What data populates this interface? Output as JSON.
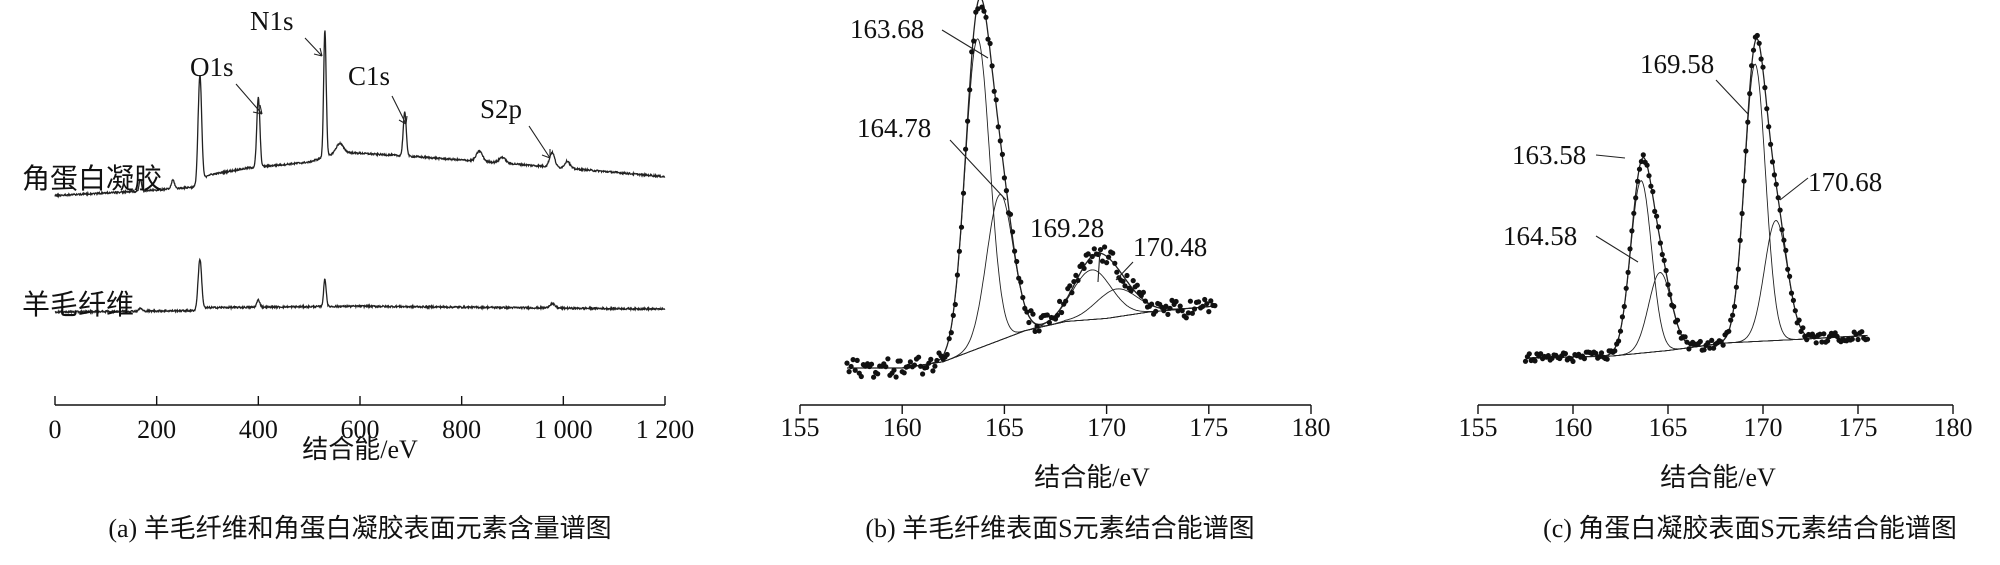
{
  "chart_data": [
    {
      "type": "line",
      "caption": "(a) 羊毛纤维和角蛋白凝胶表面元素含量谱图",
      "xlabel": "结合能/eV",
      "xlim": [
        0,
        1200
      ],
      "xticks": [
        0,
        200,
        400,
        600,
        800,
        1000,
        1200
      ],
      "xtick_labels": [
        "0",
        "200",
        "400",
        "600",
        "800",
        "1 000",
        "1 200"
      ],
      "series": [
        {
          "name": "角蛋白凝胶",
          "baseline": [
            [
              0,
              10
            ],
            [
              170,
              13
            ],
            [
              280,
              16
            ],
            [
              300,
              24
            ],
            [
              380,
              29
            ],
            [
              500,
              33
            ],
            [
              560,
              40
            ],
            [
              700,
              37
            ],
            [
              860,
              33
            ],
            [
              1000,
              29
            ],
            [
              1200,
              23
            ]
          ],
          "peaks": [
            {
              "x": 168,
              "h": 8,
              "w": 2.5
            },
            {
              "x": 232,
              "h": 6,
              "w": 3
            },
            {
              "x": 285,
              "h": 75,
              "w": 3.5
            },
            {
              "x": 400,
              "h": 48,
              "w": 3
            },
            {
              "x": 531,
              "h": 88,
              "w": 2.5
            },
            {
              "x": 560,
              "h": 6,
              "w": 7
            },
            {
              "x": 688,
              "h": 30,
              "w": 3
            },
            {
              "x": 835,
              "h": 7,
              "w": 6
            },
            {
              "x": 880,
              "h": 4,
              "w": 6
            },
            {
              "x": 978,
              "h": 10,
              "w": 5
            },
            {
              "x": 1008,
              "h": 5,
              "w": 5
            }
          ]
        },
        {
          "name": "羊毛纤维",
          "baseline": [
            [
              0,
              0
            ],
            [
              280,
              1
            ],
            [
              300,
              3
            ],
            [
              600,
              4
            ],
            [
              1200,
              2
            ]
          ],
          "peaks": [
            {
              "x": 168,
              "h": 2,
              "w": 3
            },
            {
              "x": 285,
              "h": 35,
              "w": 3.5
            },
            {
              "x": 400,
              "h": 5,
              "w": 3
            },
            {
              "x": 531,
              "h": 19,
              "w": 2.5
            },
            {
              "x": 978,
              "h": 3,
              "w": 5
            }
          ]
        }
      ],
      "annotations": [
        {
          "text": "O1s",
          "x": 400
        },
        {
          "text": "N1s",
          "x": 531
        },
        {
          "text": "C1s",
          "x": 688
        },
        {
          "text": "S2p",
          "x": 978
        }
      ]
    },
    {
      "type": "scatter",
      "caption": "(b) 羊毛纤维表面S元素结合能谱图",
      "xlabel": "结合能/eV",
      "xlim": [
        155,
        180
      ],
      "xticks": [
        155,
        160,
        165,
        170,
        175,
        180
      ],
      "data_range": [
        157.3,
        175.3
      ],
      "background": [
        [
          157.3,
          0
        ],
        [
          160,
          0
        ],
        [
          162,
          2
        ],
        [
          164,
          7
        ],
        [
          166,
          12
        ],
        [
          168,
          15
        ],
        [
          170,
          16
        ],
        [
          172,
          18
        ],
        [
          175.3,
          20
        ]
      ],
      "components": [
        {
          "center": 163.68,
          "height": 100,
          "sigma": 0.6
        },
        {
          "center": 164.78,
          "height": 47,
          "sigma": 0.65
        },
        {
          "center": 169.28,
          "height": 16,
          "sigma": 0.95
        },
        {
          "center": 170.48,
          "height": 9,
          "sigma": 1.0
        }
      ],
      "peak_labels": [
        "163.68",
        "164.78",
        "169.28",
        "170.48"
      ]
    },
    {
      "type": "scatter",
      "caption": "(c) 角蛋白凝胶表面S元素结合能谱图",
      "xlabel": "结合能/eV",
      "xlim": [
        155,
        180
      ],
      "xticks": [
        155,
        160,
        165,
        170,
        175,
        180
      ],
      "data_range": [
        157.5,
        175.5
      ],
      "background": [
        [
          157.5,
          0
        ],
        [
          162,
          0.5
        ],
        [
          165,
          2
        ],
        [
          168,
          4
        ],
        [
          172,
          5
        ],
        [
          175.5,
          6
        ]
      ],
      "components": [
        {
          "center": 163.58,
          "height": 46,
          "sigma": 0.55
        },
        {
          "center": 164.58,
          "height": 21,
          "sigma": 0.6
        },
        {
          "center": 169.58,
          "height": 74,
          "sigma": 0.55
        },
        {
          "center": 170.68,
          "height": 32,
          "sigma": 0.6
        }
      ],
      "peak_labels": [
        "163.58",
        "164.58",
        "169.58",
        "170.68"
      ]
    }
  ]
}
